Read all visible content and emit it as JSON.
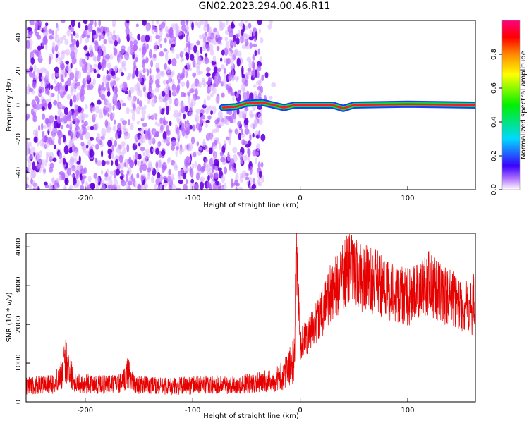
{
  "title": "GN02.2023.294.00.46.R11",
  "colors": {
    "scatter_light": "#d9b3ff",
    "scatter_mid": "#b366ff",
    "scatter_dark": "#6600e0",
    "line": "#e60000",
    "ridge_outer": "#1a3cff",
    "ridge_mid": "#00e040",
    "ridge_inner": "#ff1a1a"
  },
  "chart_data": [
    {
      "type": "heatmap",
      "xlabel": "Height of straight line (km)",
      "ylabel": "Frequency (Hz)",
      "xlim": [
        -255,
        163
      ],
      "ylim": [
        -50,
        50
      ],
      "xticks": [
        -200,
        -100,
        0,
        100
      ],
      "yticks": [
        -40,
        -20,
        0,
        20,
        40
      ],
      "grid": false,
      "description_points": {
        "noise_region_x": [
          -255,
          -35
        ],
        "ridge_center_freq": 0,
        "ridge_points": [
          {
            "x": -72,
            "y": -1.5
          },
          {
            "x": -60,
            "y": -1
          },
          {
            "x": -50,
            "y": 1
          },
          {
            "x": -35,
            "y": 1.5
          },
          {
            "x": -25,
            "y": 0
          },
          {
            "x": -15,
            "y": -1.5
          },
          {
            "x": -5,
            "y": 0
          },
          {
            "x": 5,
            "y": 0
          },
          {
            "x": 30,
            "y": 0
          },
          {
            "x": 40,
            "y": -2
          },
          {
            "x": 50,
            "y": 0
          },
          {
            "x": 100,
            "y": 0.5
          },
          {
            "x": 163,
            "y": 0
          }
        ]
      },
      "colorbar": {
        "label": "Normalized spectral amplitude",
        "range": [
          0.0,
          1.0
        ],
        "ticks": [
          0.0,
          0.2,
          0.4,
          0.6,
          0.8
        ],
        "tick_labels": [
          "0.0",
          "0.2",
          "0.4",
          "0.6",
          "0.8"
        ]
      }
    },
    {
      "type": "line",
      "xlabel": "Height of straight line (km)",
      "ylabel": "SNR (10 * v/v)",
      "xlim": [
        -255,
        163
      ],
      "ylim": [
        0,
        4350
      ],
      "xticks": [
        -200,
        -100,
        0,
        100
      ],
      "yticks": [
        0,
        1000,
        2000,
        3000,
        4000
      ],
      "grid": false,
      "series": [
        {
          "x": [
            -255,
            -230,
            -222,
            -218,
            -210,
            -190,
            -165,
            -160,
            -155,
            -140,
            -120,
            -100,
            -80,
            -60,
            -40,
            -25,
            -15,
            -5,
            -4,
            0,
            10,
            20,
            30,
            40,
            45,
            50,
            60,
            70,
            80,
            90,
            100,
            110,
            115,
            120,
            130,
            140,
            150,
            160,
            163
          ],
          "y": [
            420,
            450,
            700,
            1100,
            520,
            430,
            480,
            800,
            450,
            420,
            400,
            430,
            450,
            430,
            500,
            550,
            700,
            1100,
            4300,
            1500,
            1800,
            2300,
            2900,
            3200,
            3500,
            3300,
            3200,
            3100,
            2900,
            2800,
            2700,
            2800,
            3000,
            3100,
            2800,
            2700,
            2500,
            2400,
            2800
          ]
        }
      ]
    }
  ]
}
